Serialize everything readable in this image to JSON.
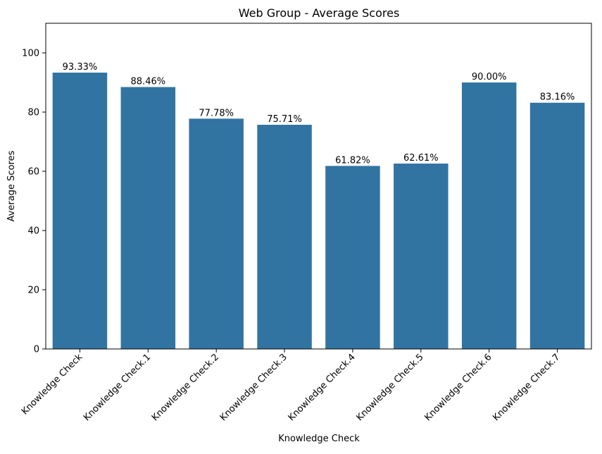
{
  "chart_data": {
    "type": "bar",
    "title": "Web Group - Average Scores",
    "xlabel": "Knowledge Check",
    "ylabel": "Average Scores",
    "categories": [
      "Knowledge Check",
      "Knowledge Check.1",
      "Knowledge Check.2",
      "Knowledge Check.3",
      "Knowledge Check.4",
      "Knowledge Check.5",
      "Knowledge Check.6",
      "Knowledge Check.7"
    ],
    "values": [
      93.33,
      88.46,
      77.78,
      75.71,
      61.82,
      62.61,
      90.0,
      83.16
    ],
    "data_labels": [
      "93.33%",
      "88.46%",
      "77.78%",
      "75.71%",
      "61.82%",
      "62.61%",
      "90.00%",
      "83.16%"
    ],
    "ylim": [
      0,
      110
    ],
    "yticks": [
      0,
      20,
      40,
      60,
      80,
      100
    ],
    "grid": false,
    "bar_color": "#3274a1"
  }
}
